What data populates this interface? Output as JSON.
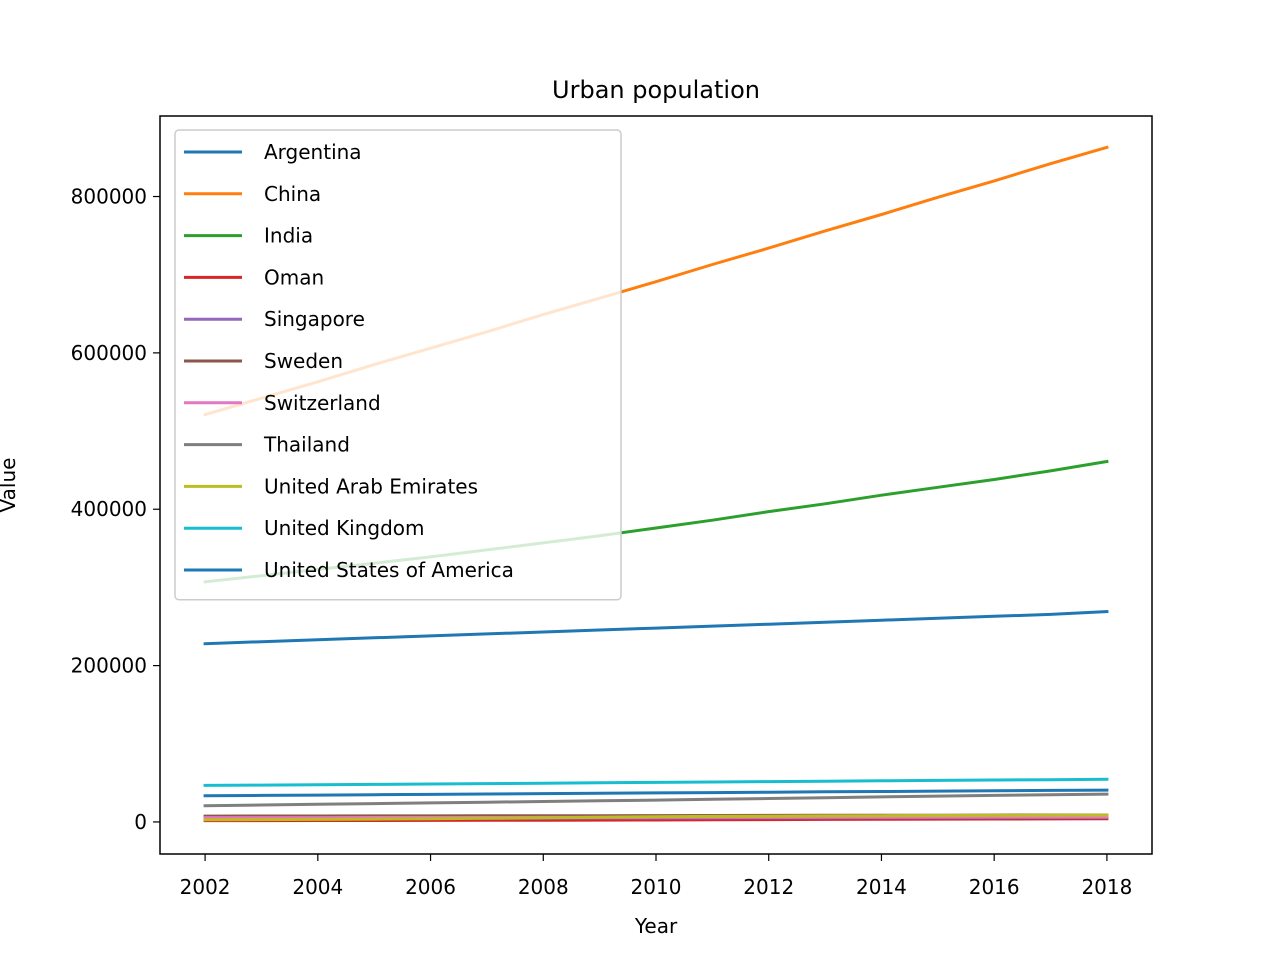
{
  "chart_data": {
    "type": "line",
    "title": "Urban population",
    "xlabel": "Year",
    "ylabel": "Value",
    "xlim": [
      2001.2,
      2018.8
    ],
    "ylim": [
      -41000,
      903000
    ],
    "xticks": [
      2002,
      2004,
      2006,
      2008,
      2010,
      2012,
      2014,
      2016,
      2018
    ],
    "yticks": [
      0,
      200000,
      400000,
      600000,
      800000
    ],
    "grid": false,
    "legend_position": "upper-left",
    "x": [
      2002,
      2003,
      2004,
      2005,
      2006,
      2007,
      2008,
      2009,
      2010,
      2011,
      2012,
      2013,
      2014,
      2015,
      2016,
      2017,
      2018
    ],
    "series": [
      {
        "name": "Argentina",
        "color": "#1f77b4",
        "values": [
          33500,
          34000,
          34400,
          34900,
          35300,
          35800,
          36200,
          36700,
          37100,
          37600,
          38000,
          38500,
          38900,
          39400,
          39800,
          40300,
          40700
        ]
      },
      {
        "name": "China",
        "color": "#ff7f0e",
        "values": [
          521000,
          542000,
          563000,
          585000,
          606000,
          627000,
          649000,
          670000,
          691000,
          713000,
          734000,
          756000,
          777000,
          799000,
          820000,
          842000,
          863000
        ]
      },
      {
        "name": "India",
        "color": "#2ca02c",
        "values": [
          307000,
          315000,
          323000,
          331000,
          339000,
          348000,
          357000,
          366000,
          376000,
          386000,
          397000,
          407000,
          418000,
          428000,
          438000,
          449000,
          461000
        ]
      },
      {
        "name": "Oman",
        "color": "#d62728",
        "values": [
          1700,
          1750,
          1800,
          1850,
          1950,
          2050,
          2200,
          2350,
          2550,
          2800,
          3000,
          3200,
          3400,
          3600,
          3800,
          3950,
          4100
        ]
      },
      {
        "name": "Singapore",
        "color": "#9467bd",
        "values": [
          4200,
          4250,
          4300,
          4450,
          4600,
          4700,
          4850,
          5000,
          5100,
          5200,
          5300,
          5400,
          5500,
          5550,
          5600,
          5650,
          5700
        ]
      },
      {
        "name": "Sweden",
        "color": "#8c564b",
        "values": [
          7500,
          7550,
          7600,
          7700,
          7750,
          7850,
          7950,
          8050,
          8150,
          8250,
          8350,
          8450,
          8550,
          8650,
          8750,
          8850,
          8950
        ]
      },
      {
        "name": "Switzerland",
        "color": "#e377c2",
        "values": [
          5500,
          5550,
          5600,
          5650,
          5700,
          5750,
          5800,
          5850,
          5950,
          6000,
          6100,
          6200,
          6250,
          6350,
          6450,
          6500,
          6600
        ]
      },
      {
        "name": "Thailand",
        "color": "#7f7f7f",
        "values": [
          20800,
          21700,
          22600,
          23500,
          24400,
          25300,
          26200,
          27100,
          28000,
          29000,
          30000,
          31000,
          32000,
          33000,
          34000,
          34800,
          35500
        ]
      },
      {
        "name": "United Arab Emirates",
        "color": "#bcbd22",
        "values": [
          2800,
          3000,
          3300,
          3600,
          4100,
          4700,
          5400,
          6100,
          6700,
          7100,
          7400,
          7700,
          8000,
          8200,
          8400,
          8600,
          8700
        ]
      },
      {
        "name": "United Kingdom",
        "color": "#17becf",
        "values": [
          46700,
          47100,
          47500,
          48000,
          48500,
          49000,
          49600,
          50100,
          50600,
          51100,
          51600,
          52100,
          52600,
          53100,
          53600,
          54100,
          54600
        ]
      },
      {
        "name": "United States of America",
        "color": "#1f77b4",
        "values": [
          228000,
          230500,
          233000,
          235500,
          238000,
          240500,
          243000,
          245500,
          248000,
          250500,
          253000,
          255500,
          258000,
          260500,
          263000,
          265500,
          269000
        ]
      }
    ]
  }
}
